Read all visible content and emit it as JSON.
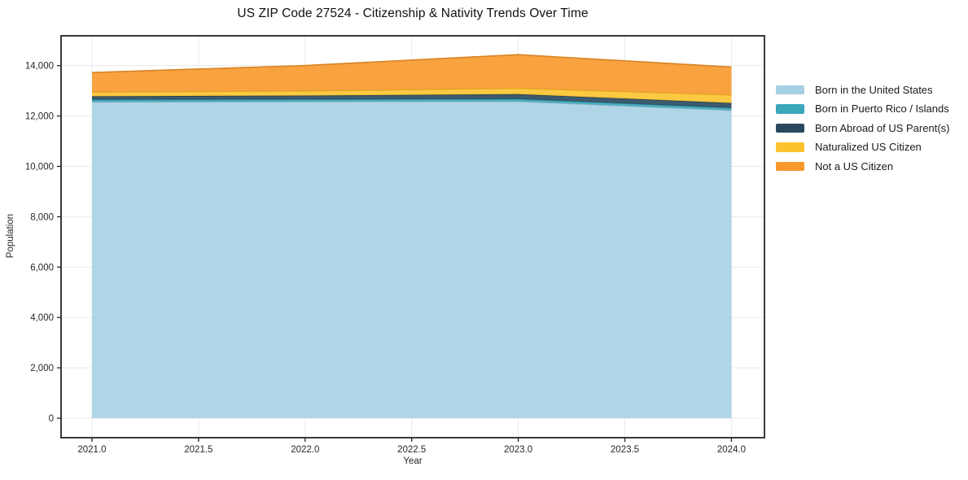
{
  "chart_data": {
    "type": "area",
    "stacked": true,
    "title": "US ZIP Code 27524 - Citizenship & Nativity Trends Over Time",
    "xlabel": "Year",
    "ylabel": "Population",
    "x": [
      2021,
      2022,
      2023,
      2024
    ],
    "series": [
      {
        "name": "Born in the United States",
        "color": "#a6d0e4",
        "values": [
          12560,
          12570,
          12580,
          12225
        ]
      },
      {
        "name": "Born in Puerto Rico / Islands",
        "color": "#3ba7bb",
        "values": [
          90,
          90,
          95,
          95
        ]
      },
      {
        "name": "Born Abroad of US Parent(s)",
        "color": "#28495e",
        "values": [
          130,
          150,
          195,
          195
        ]
      },
      {
        "name": "Naturalized US Citizen",
        "color": "#fcc32e",
        "values": [
          165,
          185,
          235,
          320
        ]
      },
      {
        "name": "Not a US Citizen",
        "color": "#f8982b",
        "values": [
          780,
          1010,
          1330,
          1110
        ]
      }
    ],
    "totals": [
      13725,
      14005,
      14435,
      13945
    ],
    "xlim": [
      2020.855,
      2024.155
    ],
    "ylim": [
      -775,
      15185
    ],
    "x_ticks": [
      {
        "v": 2021.0,
        "label": "2021.0"
      },
      {
        "v": 2021.5,
        "label": "2021.5"
      },
      {
        "v": 2022.0,
        "label": "2022.0"
      },
      {
        "v": 2022.5,
        "label": "2022.5"
      },
      {
        "v": 2023.0,
        "label": "2023.0"
      },
      {
        "v": 2023.5,
        "label": "2023.5"
      },
      {
        "v": 2024.0,
        "label": "2024.0"
      }
    ],
    "y_ticks": [
      {
        "v": 0,
        "label": "0"
      },
      {
        "v": 2000,
        "label": "2,000"
      },
      {
        "v": 4000,
        "label": "4,000"
      },
      {
        "v": 6000,
        "label": "6,000"
      },
      {
        "v": 8000,
        "label": "8,000"
      },
      {
        "v": 10000,
        "label": "10,000"
      },
      {
        "v": 12000,
        "label": "12,000"
      },
      {
        "v": 14000,
        "label": "14,000"
      }
    ],
    "grid": true,
    "legend_position": "right-outside"
  }
}
